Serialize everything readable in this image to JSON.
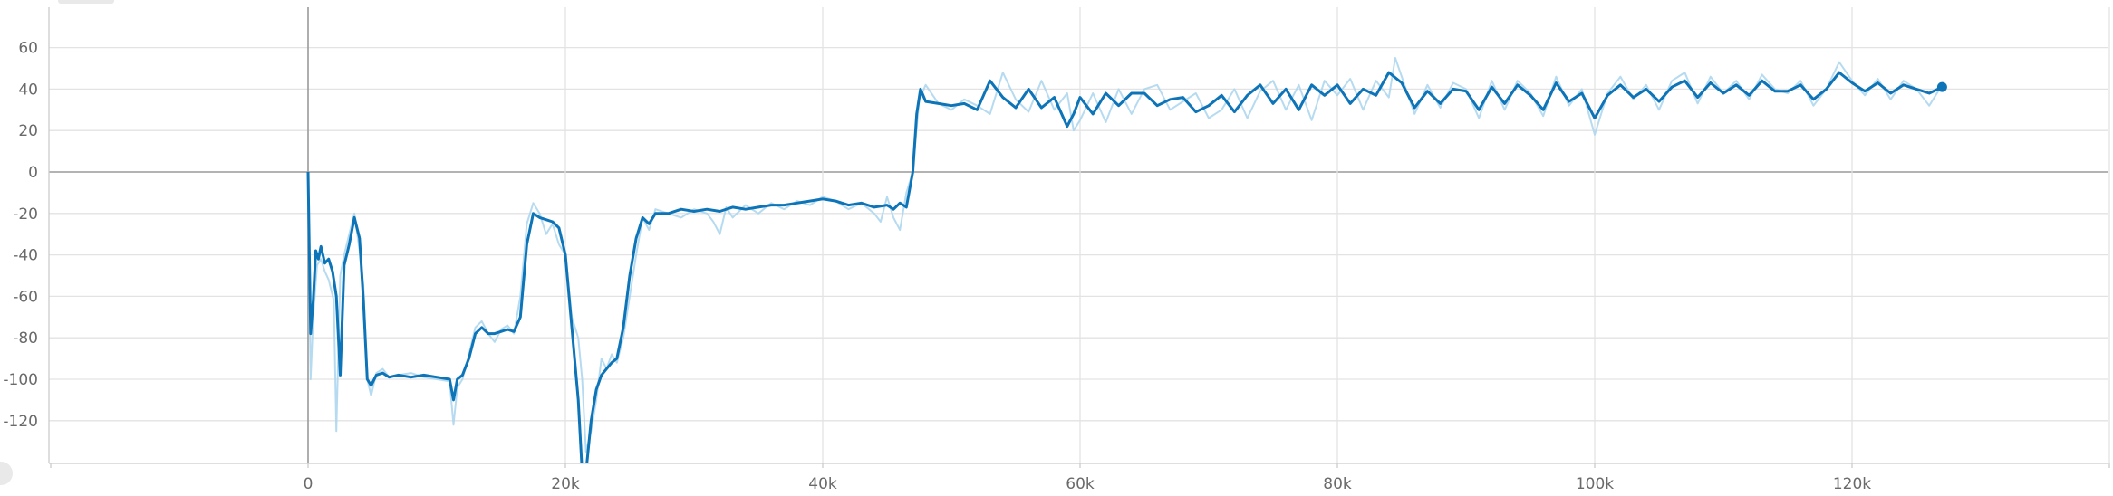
{
  "chart_data": {
    "type": "line",
    "title": "",
    "xlabel": "",
    "ylabel": "",
    "xlim": [
      -20000,
      140000
    ],
    "ylim": [
      -140,
      75
    ],
    "x_ticks": [
      0,
      20000,
      40000,
      60000,
      80000,
      100000,
      120000
    ],
    "x_tick_labels": [
      "0",
      "20k",
      "40k",
      "60k",
      "80k",
      "100k",
      "120k"
    ],
    "y_ticks": [
      60,
      40,
      20,
      0,
      -20,
      -40,
      -60,
      -80,
      -100,
      -120
    ],
    "y_tick_labels": [
      "60",
      "40",
      "20",
      "0",
      "-20",
      "-40",
      "-60",
      "-80",
      "-100",
      "-120"
    ],
    "grid": true,
    "series": [
      {
        "role": "raw",
        "color": "#a9d5ef",
        "x": [
          0,
          200,
          400,
          700,
          1000,
          1300,
          1600,
          2000,
          2200,
          2500,
          2800,
          3200,
          3600,
          4000,
          4300,
          4600,
          4900,
          5300,
          5800,
          6300,
          7000,
          8000,
          9000,
          10000,
          11000,
          11300,
          11600,
          12000,
          12500,
          13000,
          13500,
          14000,
          14500,
          15000,
          15500,
          16000,
          16500,
          17000,
          17500,
          18000,
          18500,
          19000,
          19500,
          20000,
          20500,
          21000,
          21300,
          21600,
          22000,
          22400,
          22800,
          23200,
          23600,
          24000,
          24500,
          25000,
          25500,
          26000,
          26500,
          27000,
          28000,
          29000,
          30000,
          31000,
          31500,
          32000,
          32500,
          33000,
          34000,
          35000,
          36000,
          37000,
          38000,
          39000,
          40000,
          41000,
          42000,
          43000,
          44000,
          44500,
          45000,
          45500,
          46000,
          46500,
          47000,
          47500,
          48000,
          49000,
          50000,
          51000,
          52000,
          53000,
          54000,
          55000,
          56000,
          57000,
          58000,
          59000,
          59500,
          60000,
          61000,
          62000,
          63000,
          64000,
          65000,
          66000,
          67000,
          68000,
          69000,
          70000,
          71000,
          72000,
          73000,
          74000,
          75000,
          76000,
          77000,
          78000,
          79000,
          80000,
          81000,
          82000,
          83000,
          84000,
          84500,
          85000,
          86000,
          87000,
          88000,
          89000,
          90000,
          91000,
          92000,
          93000,
          94000,
          95000,
          96000,
          97000,
          98000,
          99000,
          100000,
          101000,
          102000,
          103000,
          104000,
          105000,
          106000,
          107000,
          108000,
          109000,
          110000,
          111000,
          112000,
          113000,
          114000,
          115000,
          116000,
          117000,
          118000,
          119000,
          120000,
          121000,
          122000,
          123000,
          124000,
          125000,
          126000,
          127000
        ],
        "y": [
          -2,
          -100,
          -70,
          -45,
          -42,
          -48,
          -52,
          -62,
          -125,
          -50,
          -40,
          -30,
          -20,
          -38,
          -55,
          -100,
          -108,
          -97,
          -95,
          -99,
          -98,
          -97,
          -99,
          -100,
          -101,
          -122,
          -104,
          -100,
          -88,
          -75,
          -72,
          -78,
          -82,
          -76,
          -74,
          -78,
          -60,
          -25,
          -15,
          -20,
          -30,
          -25,
          -35,
          -40,
          -70,
          -80,
          -100,
          -135,
          -125,
          -110,
          -90,
          -95,
          -88,
          -92,
          -80,
          -60,
          -40,
          -22,
          -28,
          -18,
          -20,
          -22,
          -18,
          -20,
          -24,
          -30,
          -17,
          -22,
          -16,
          -20,
          -15,
          -18,
          -14,
          -16,
          -12,
          -14,
          -18,
          -15,
          -20,
          -24,
          -12,
          -22,
          -28,
          -10,
          0,
          35,
          42,
          33,
          30,
          35,
          32,
          28,
          48,
          35,
          29,
          44,
          30,
          38,
          20,
          25,
          38,
          24,
          40,
          28,
          40,
          42,
          30,
          34,
          38,
          26,
          30,
          40,
          26,
          39,
          44,
          30,
          42,
          25,
          44,
          37,
          45,
          30,
          44,
          36,
          55,
          46,
          28,
          42,
          31,
          43,
          40,
          26,
          44,
          30,
          44,
          38,
          27,
          46,
          32,
          40,
          18,
          38,
          46,
          35,
          42,
          30,
          44,
          48,
          33,
          46,
          38,
          44,
          35,
          47,
          40,
          38,
          44,
          32,
          40,
          53,
          44,
          37,
          45,
          35,
          44,
          40,
          32,
          42
        ]
      },
      {
        "role": "smoothed",
        "color": "#0d74b8",
        "x": [
          0,
          200,
          400,
          600,
          800,
          1000,
          1300,
          1600,
          1900,
          2200,
          2500,
          2800,
          3200,
          3600,
          4000,
          4300,
          4600,
          4900,
          5300,
          5800,
          6300,
          7000,
          8000,
          9000,
          10000,
          11000,
          11300,
          11600,
          12000,
          12500,
          13000,
          13500,
          14000,
          14500,
          15000,
          15500,
          16000,
          16500,
          17000,
          17500,
          18000,
          18500,
          19000,
          19500,
          20000,
          20500,
          21000,
          21300,
          21600,
          22000,
          22400,
          22800,
          23200,
          23600,
          24000,
          24500,
          25000,
          25500,
          26000,
          26500,
          27000,
          28000,
          29000,
          30000,
          31000,
          32000,
          33000,
          34000,
          35000,
          36000,
          37000,
          38000,
          39000,
          40000,
          41000,
          42000,
          43000,
          44000,
          45000,
          45500,
          46000,
          46500,
          47000,
          47300,
          47600,
          48000,
          49000,
          50000,
          51000,
          52000,
          53000,
          54000,
          55000,
          56000,
          57000,
          58000,
          59000,
          59500,
          60000,
          61000,
          62000,
          63000,
          64000,
          65000,
          66000,
          67000,
          68000,
          69000,
          70000,
          71000,
          72000,
          73000,
          74000,
          75000,
          76000,
          77000,
          78000,
          79000,
          80000,
          81000,
          82000,
          83000,
          84000,
          85000,
          86000,
          87000,
          88000,
          89000,
          90000,
          91000,
          92000,
          93000,
          94000,
          95000,
          96000,
          97000,
          98000,
          99000,
          100000,
          101000,
          102000,
          103000,
          104000,
          105000,
          106000,
          107000,
          108000,
          109000,
          110000,
          111000,
          112000,
          113000,
          114000,
          115000,
          116000,
          117000,
          118000,
          119000,
          120000,
          121000,
          122000,
          123000,
          124000,
          125000,
          126000,
          127000
        ],
        "y": [
          0,
          -78,
          -62,
          -38,
          -42,
          -36,
          -44,
          -42,
          -48,
          -60,
          -98,
          -45,
          -35,
          -22,
          -32,
          -62,
          -100,
          -103,
          -98,
          -97,
          -99,
          -98,
          -99,
          -98,
          -99,
          -100,
          -110,
          -100,
          -98,
          -90,
          -78,
          -75,
          -78,
          -78,
          -77,
          -76,
          -77,
          -70,
          -35,
          -20,
          -22,
          -23,
          -24,
          -27,
          -40,
          -75,
          -110,
          -145,
          -145,
          -120,
          -105,
          -98,
          -95,
          -92,
          -90,
          -75,
          -50,
          -32,
          -22,
          -25,
          -20,
          -20,
          -18,
          -19,
          -18,
          -19,
          -17,
          -18,
          -17,
          -16,
          -16,
          -15,
          -14,
          -13,
          -14,
          -16,
          -15,
          -17,
          -16,
          -18,
          -15,
          -17,
          0,
          28,
          40,
          34,
          33,
          32,
          33,
          30,
          44,
          36,
          31,
          40,
          31,
          36,
          22,
          28,
          36,
          28,
          38,
          32,
          38,
          38,
          32,
          35,
          36,
          29,
          32,
          37,
          29,
          37,
          42,
          33,
          40,
          30,
          42,
          37,
          42,
          33,
          40,
          37,
          48,
          43,
          31,
          39,
          33,
          40,
          39,
          30,
          41,
          33,
          42,
          37,
          30,
          43,
          34,
          38,
          26,
          37,
          42,
          36,
          40,
          34,
          41,
          44,
          36,
          43,
          38,
          42,
          37,
          44,
          39,
          39,
          42,
          35,
          40,
          48,
          43,
          39,
          43,
          38,
          42,
          40,
          38,
          41
        ]
      }
    ]
  }
}
